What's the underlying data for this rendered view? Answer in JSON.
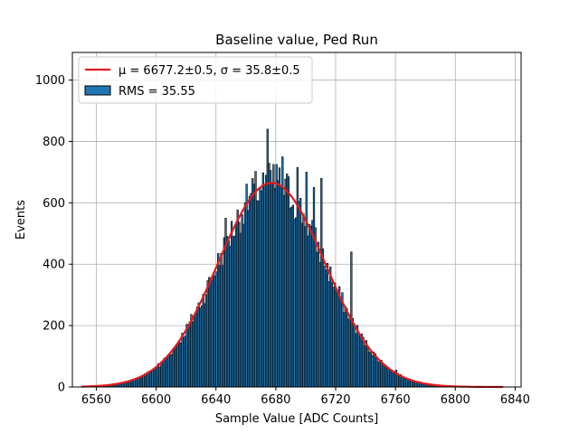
{
  "chart_data": {
    "type": "bar",
    "title": "Baseline value, Ped Run",
    "xlabel": "Sample Value [ADC Counts]",
    "ylabel": "Events",
    "xlim": [
      6544,
      6844
    ],
    "ylim": [
      0,
      1090
    ],
    "xticks": [
      6560,
      6600,
      6640,
      6680,
      6720,
      6760,
      6800,
      6840
    ],
    "yticks": [
      0,
      200,
      400,
      600,
      800,
      1000
    ],
    "grid": true,
    "legend_position": "top-left",
    "bin_width": 1,
    "histogram_range": [
      6550,
      6830
    ],
    "fit": {
      "name": "$\\mu=6677.2\\pm0.5$, $\\sigma=35.8\\pm0.5$",
      "legend_label": "μ = 6677.2±0.5, σ = 35.8±0.5",
      "mu": 6677.2,
      "sigma": 35.8,
      "amplitude": 665,
      "x_range": [
        6550,
        6832
      ],
      "color": "#e41a1c"
    },
    "histogram": {
      "legend_label": "RMS = 35.55",
      "color": "#1f77b4",
      "edge_color": "#000000",
      "peak_bins": [
        {
          "x": 6674,
          "y": 840
        },
        {
          "x": 6673,
          "y": 690
        },
        {
          "x": 6684,
          "y": 750
        },
        {
          "x": 6700,
          "y": 700
        },
        {
          "x": 6710,
          "y": 680
        },
        {
          "x": 6680,
          "y": 725
        },
        {
          "x": 6694,
          "y": 715
        },
        {
          "x": 6705,
          "y": 650
        },
        {
          "x": 6659,
          "y": 600
        },
        {
          "x": 6646,
          "y": 550
        },
        {
          "x": 6730,
          "y": 440
        },
        {
          "x": 6760,
          "y": 55
        },
        {
          "x": 6602,
          "y": 65
        }
      ]
    }
  }
}
